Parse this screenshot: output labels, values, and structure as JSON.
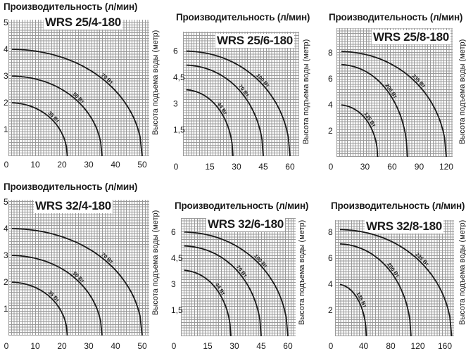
{
  "chart_data": [
    {
      "type": "line",
      "title": "WRS 25/4-180",
      "xlabel": "Производительность (л/мин)",
      "ylabel": "Высота подъема воды (метр)",
      "xticks": [
        "0",
        "10",
        "20",
        "30",
        "40",
        "50"
      ],
      "xtick_values": [
        0,
        10,
        20,
        30,
        40,
        50
      ],
      "yticks": [
        "1",
        "2",
        "3",
        "4",
        "5"
      ],
      "ytick_values": [
        1,
        2,
        3,
        4,
        5
      ],
      "xlim": [
        0,
        52
      ],
      "ylim": [
        0,
        5
      ],
      "grid": true,
      "series": [
        {
          "name": "35 Вт",
          "shutoff_head": 2,
          "max_flow": 22
        },
        {
          "name": "50 Вт",
          "shutoff_head": 3,
          "max_flow": 35
        },
        {
          "name": "70 Вт",
          "shutoff_head": 4,
          "max_flow": 50
        }
      ]
    },
    {
      "type": "line",
      "title": "WRS 25/6-180",
      "xlabel": "Производительность (л/мин)",
      "ylabel": "Высота подъема воды (метр)",
      "xticks": [
        "0",
        "15",
        "30",
        "45",
        "60"
      ],
      "xtick_values": [
        0,
        15,
        30,
        45,
        60
      ],
      "yticks": [
        "1,5",
        "3",
        "4,5",
        "6"
      ],
      "ytick_values": [
        1.5,
        3,
        4.5,
        6
      ],
      "xlim": [
        0,
        65
      ],
      "ylim": [
        0,
        7
      ],
      "grid": true,
      "series": [
        {
          "name": "44 Вт",
          "shutoff_head": 3.8,
          "max_flow": 28
        },
        {
          "name": "70 Вт",
          "shutoff_head": 5.2,
          "max_flow": 45
        },
        {
          "name": "100 Вт",
          "shutoff_head": 6,
          "max_flow": 60
        }
      ]
    },
    {
      "type": "line",
      "title": "WRS 25/8-180",
      "xlabel": "Производительность (л/мин)",
      "ylabel": "Высота подъема воды (метр)",
      "xticks": [
        "0",
        "30",
        "60",
        "90",
        "120"
      ],
      "xtick_values": [
        0,
        30,
        60,
        90,
        120
      ],
      "yticks": [
        "2",
        "4",
        "6",
        "8"
      ],
      "ytick_values": [
        2,
        4,
        6,
        8
      ],
      "xlim": [
        0,
        128
      ],
      "ylim": [
        0,
        9.8
      ],
      "grid": true,
      "series": [
        {
          "name": "135 Вт",
          "shutoff_head": 4,
          "max_flow": 44
        },
        {
          "name": "200 Вт",
          "shutoff_head": 7.1,
          "max_flow": 77
        },
        {
          "name": "235 Вт",
          "shutoff_head": 8.1,
          "max_flow": 120
        }
      ]
    },
    {
      "type": "line",
      "title": "WRS 32/4-180",
      "xlabel": "Производительность (л/мин)",
      "ylabel": "Высота подъема воды (метр)",
      "xticks": [
        "0",
        "10",
        "20",
        "30",
        "40",
        "50"
      ],
      "xtick_values": [
        0,
        10,
        20,
        30,
        40,
        50
      ],
      "yticks": [
        "1",
        "2",
        "3",
        "4",
        "5"
      ],
      "ytick_values": [
        1,
        2,
        3,
        4,
        5
      ],
      "xlim": [
        0,
        52
      ],
      "ylim": [
        0,
        5
      ],
      "grid": true,
      "series": [
        {
          "name": "35 Вт",
          "shutoff_head": 2,
          "max_flow": 22
        },
        {
          "name": "50 Вт",
          "shutoff_head": 3,
          "max_flow": 35
        },
        {
          "name": "70 Вт",
          "shutoff_head": 4,
          "max_flow": 50
        }
      ]
    },
    {
      "type": "line",
      "title": "WRS 32/6-180",
      "xlabel": "Производительность (л/мин)",
      "ylabel": "Высота подъема воды (метр)",
      "xticks": [
        "0",
        "15",
        "30",
        "45",
        "60"
      ],
      "xtick_values": [
        0,
        15,
        30,
        45,
        60
      ],
      "yticks": [
        "1,5",
        "3",
        "4,5",
        "6"
      ],
      "ytick_values": [
        1.5,
        3,
        4.5,
        6
      ],
      "xlim": [
        0,
        64
      ],
      "ylim": [
        0,
        6.8
      ],
      "grid": true,
      "series": [
        {
          "name": "44 Вт",
          "shutoff_head": 3.8,
          "max_flow": 28
        },
        {
          "name": "70 Вт",
          "shutoff_head": 5.2,
          "max_flow": 45
        },
        {
          "name": "100 Вт",
          "shutoff_head": 6,
          "max_flow": 60
        }
      ]
    },
    {
      "type": "line",
      "title": "WRS 32/8-180",
      "xlabel": "Производительность (л/мин)",
      "ylabel": "Высота подъема воды (метр)",
      "xticks": [
        "0",
        "40",
        "80",
        "120",
        "160"
      ],
      "xtick_values": [
        0,
        40,
        80,
        120,
        160
      ],
      "yticks": [
        "2",
        "4",
        "6",
        "8"
      ],
      "ytick_values": [
        2,
        4,
        6,
        8
      ],
      "xlim": [
        0,
        174
      ],
      "ylim": [
        0,
        8.9
      ],
      "grid": true,
      "series": [
        {
          "name": "135 Вт",
          "shutoff_head": 4,
          "max_flow": 44
        },
        {
          "name": "200 Вт",
          "shutoff_head": 7.1,
          "max_flow": 110
        },
        {
          "name": "235 Вт",
          "shutoff_head": 8.2,
          "max_flow": 170
        }
      ]
    }
  ]
}
